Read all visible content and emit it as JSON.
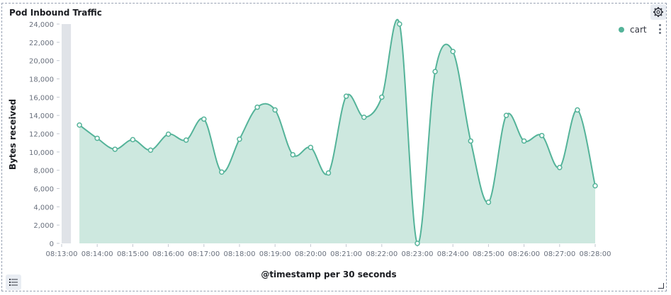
{
  "panel": {
    "title": "Pod Inbound Traffic"
  },
  "chart_data": {
    "type": "area",
    "xlabel": "@timestamp per 30 seconds",
    "ylabel": "Bytes received",
    "ylim": [
      0,
      24000
    ],
    "y_ticks": [
      0,
      2000,
      4000,
      6000,
      8000,
      10000,
      12000,
      14000,
      16000,
      18000,
      20000,
      22000,
      24000
    ],
    "y_tick_labels": [
      "0",
      "2,000",
      "4,000",
      "6,000",
      "8,000",
      "10,000",
      "12,000",
      "14,000",
      "16,000",
      "18,000",
      "20,000",
      "22,000",
      "24,000"
    ],
    "x_tick_labels": [
      "08:13:00",
      "08:14:00",
      "08:15:00",
      "08:16:00",
      "08:17:00",
      "08:18:00",
      "08:19:00",
      "08:20:00",
      "08:21:00",
      "08:22:00",
      "08:23:00",
      "08:24:00",
      "08:25:00",
      "08:26:00",
      "08:27:00",
      "08:28:00"
    ],
    "x_range": [
      "08:13:00",
      "08:28:00"
    ],
    "grid": false,
    "legend_position": "top-right",
    "series": [
      {
        "name": "cart",
        "color": "#54b399",
        "x": [
          "08:13:30",
          "08:14:00",
          "08:14:30",
          "08:15:00",
          "08:15:30",
          "08:16:00",
          "08:16:30",
          "08:17:00",
          "08:17:30",
          "08:18:00",
          "08:18:30",
          "08:19:00",
          "08:19:30",
          "08:20:00",
          "08:20:30",
          "08:21:00",
          "08:21:30",
          "08:22:00",
          "08:22:30",
          "08:23:00",
          "08:23:30",
          "08:24:00",
          "08:24:30",
          "08:25:00",
          "08:25:30",
          "08:26:00",
          "08:26:30",
          "08:27:00",
          "08:27:30",
          "08:28:00"
        ],
        "values": [
          12950,
          11500,
          10300,
          11350,
          10200,
          11950,
          11300,
          13600,
          7800,
          11400,
          14900,
          14600,
          9700,
          10500,
          7700,
          16100,
          13800,
          16000,
          24000,
          0,
          18800,
          21000,
          11200,
          4500,
          14000,
          11200,
          11800,
          8300,
          14600,
          6300
        ]
      }
    ]
  },
  "icons": {
    "settings": "gear-icon",
    "legend_menu": "kebab-icon",
    "legend_toggle": "list-icon",
    "resize": "resize-handle-icon"
  }
}
